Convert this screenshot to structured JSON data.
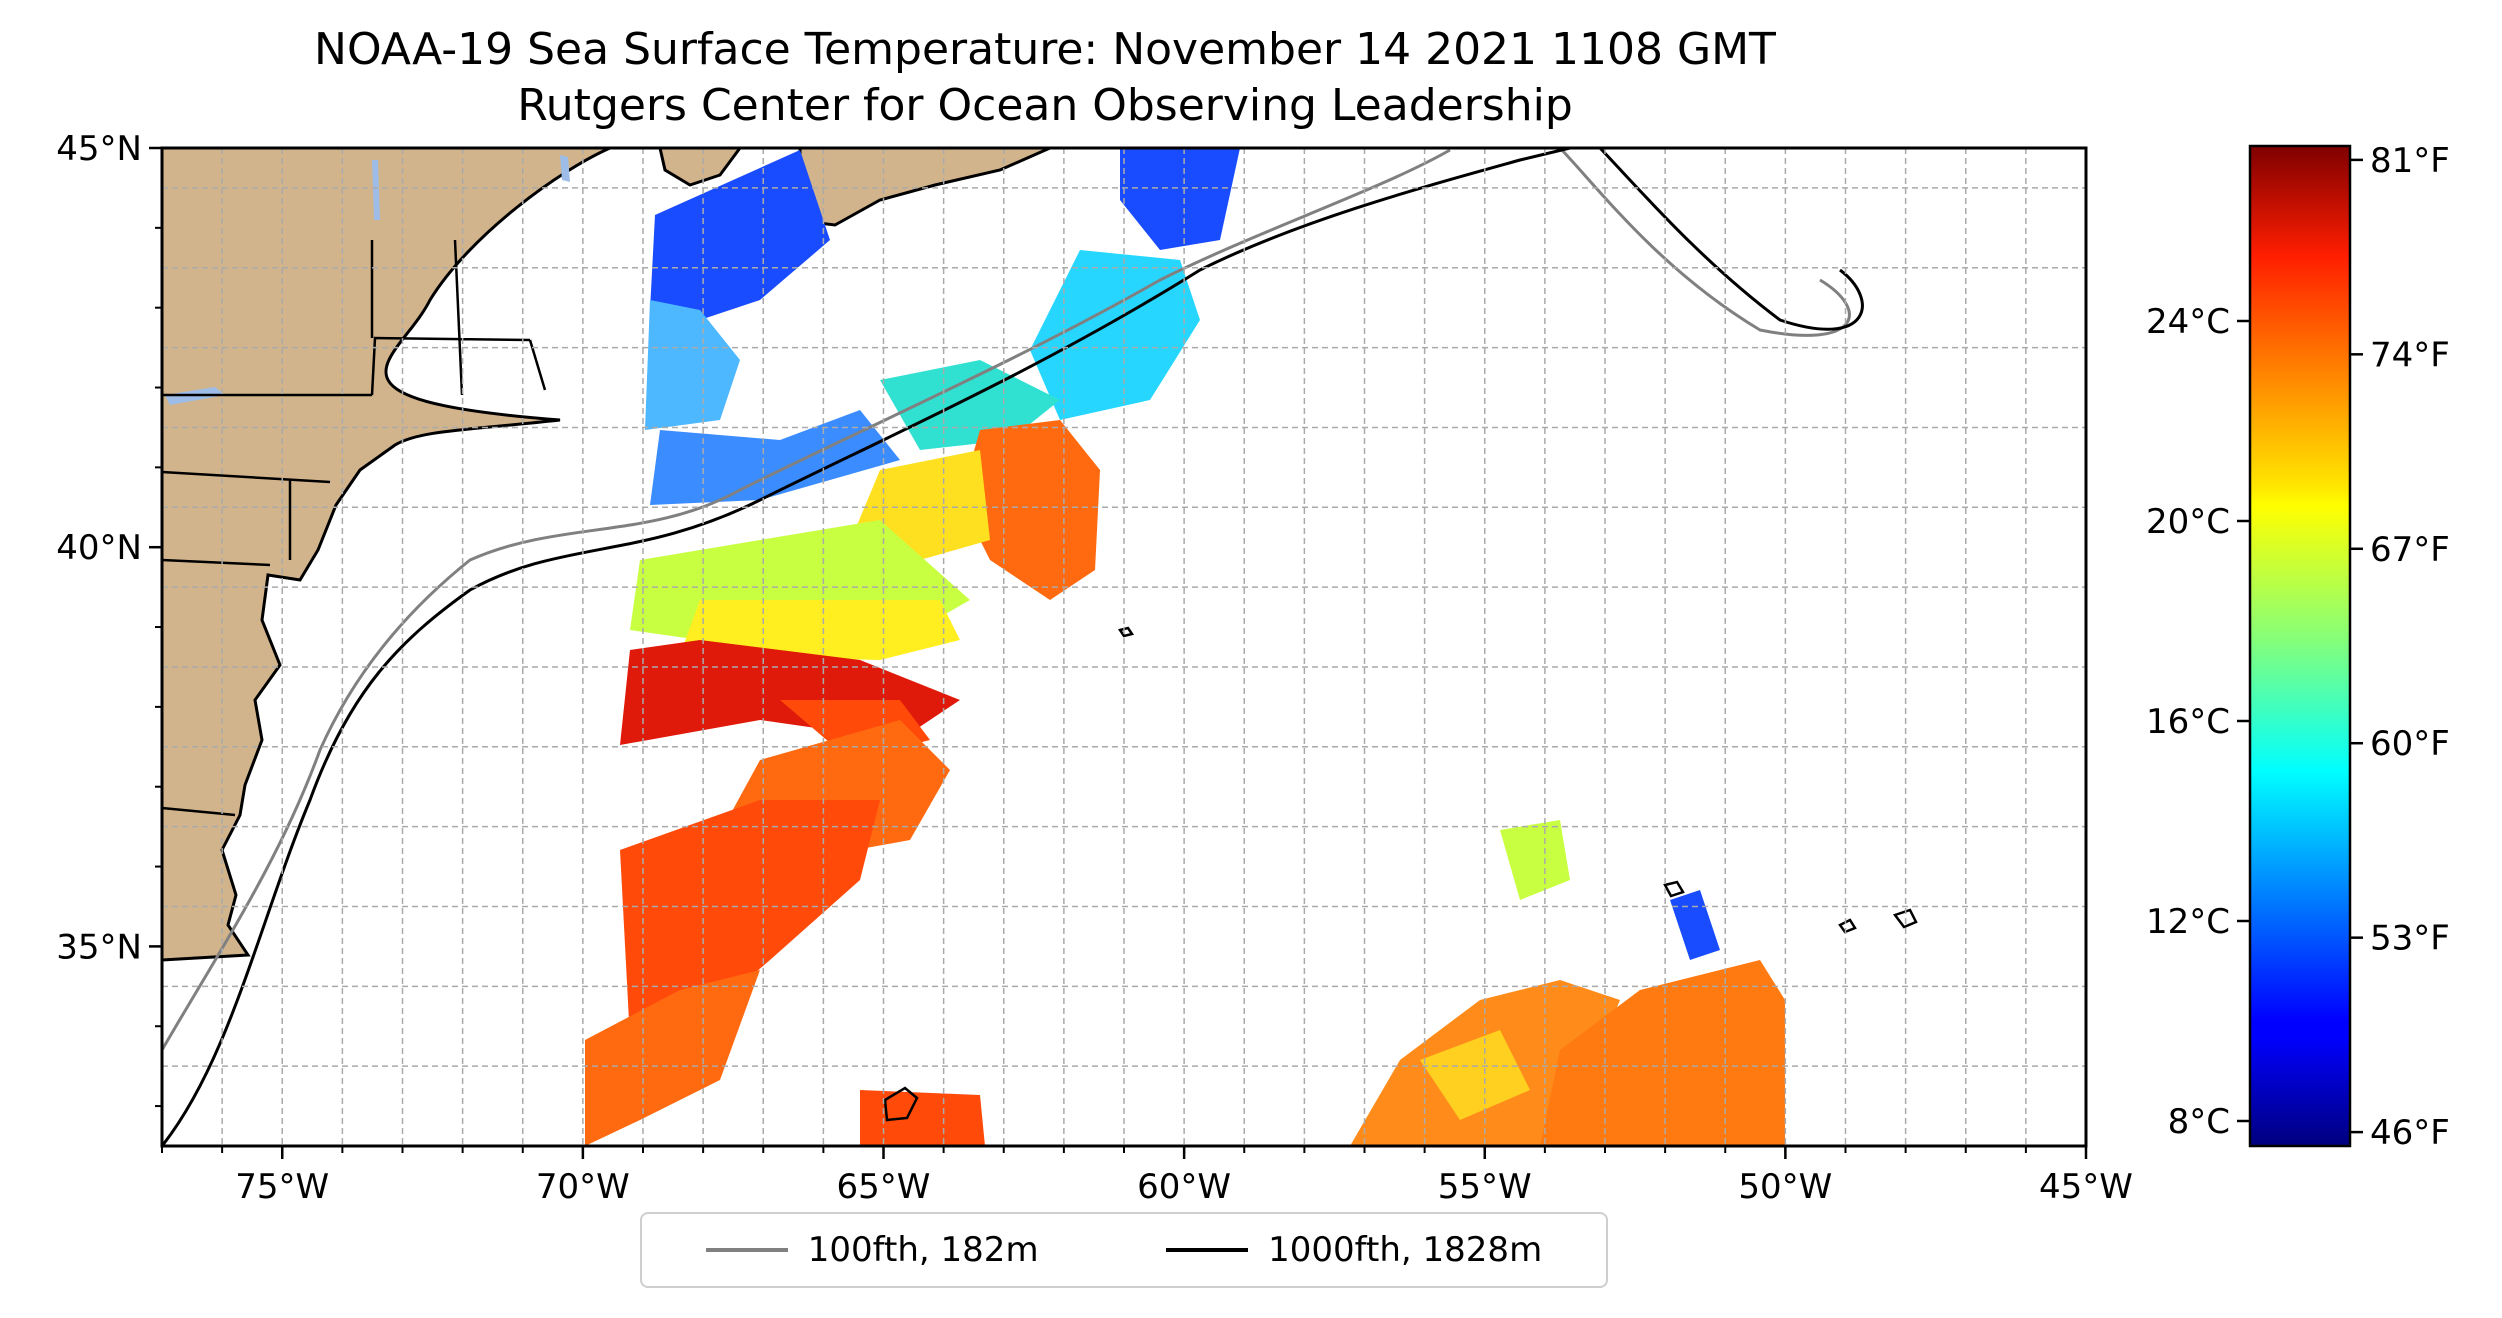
{
  "title": "NOAA-19 Sea Surface Temperature: November 14 2021 1108 GMT",
  "subtitle": "Rutgers Center for Ocean Observing Leadership",
  "map": {
    "lon_range": [
      -77,
      -45
    ],
    "lat_range": [
      32.5,
      45
    ],
    "lon_ticks": [
      {
        "value": -75,
        "label": "75°W"
      },
      {
        "value": -70,
        "label": "70°W"
      },
      {
        "value": -65,
        "label": "65°W"
      },
      {
        "value": -60,
        "label": "60°W"
      },
      {
        "value": -55,
        "label": "55°W"
      },
      {
        "value": -50,
        "label": "50°W"
      },
      {
        "value": -45,
        "label": "45°W"
      }
    ],
    "lat_ticks": [
      {
        "value": 45,
        "label": "45°N"
      },
      {
        "value": 40,
        "label": "40°N"
      },
      {
        "value": 35,
        "label": "35°N"
      }
    ],
    "grid": true,
    "land_color": "#d2b48c",
    "lake_color": "#9dbde8"
  },
  "legend": {
    "items": [
      {
        "label": "100fth, 182m",
        "color": "#808080"
      },
      {
        "label": "1000fth, 1828m",
        "color": "#000000"
      }
    ],
    "placement": "bottom-center"
  },
  "colorbar": {
    "colormap": "jet",
    "celsius_range": [
      7.5,
      27.5
    ],
    "celsius_ticks": [
      {
        "value": 8,
        "label": "8°C"
      },
      {
        "value": 12,
        "label": "12°C"
      },
      {
        "value": 16,
        "label": "16°C"
      },
      {
        "value": 20,
        "label": "20°C"
      },
      {
        "value": 24,
        "label": "24°C"
      }
    ],
    "fahrenheit_ticks": [
      {
        "value": 46,
        "label": "46°F"
      },
      {
        "value": 53,
        "label": "53°F"
      },
      {
        "value": 60,
        "label": "60°F"
      },
      {
        "value": 67,
        "label": "67°F"
      },
      {
        "value": 74,
        "label": "74°F"
      },
      {
        "value": 81,
        "label": "81°F"
      }
    ]
  }
}
